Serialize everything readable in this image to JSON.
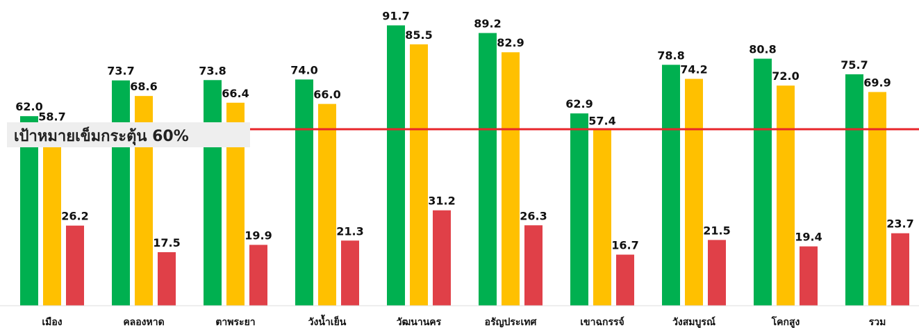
{
  "chart_data": {
    "type": "bar",
    "categories": [
      "เมือง",
      "คลองหาด",
      "ตาพระยา",
      "วังน้ำเย็น",
      "วัฒนานคร",
      "อรัญประเทศ",
      "เขาฉกรรจ์",
      "วังสมบูรณ์",
      "โคกสูง",
      "รวม"
    ],
    "series": [
      {
        "values": [
          62.0,
          73.7,
          73.8,
          74.0,
          91.7,
          89.2,
          62.9,
          78.8,
          80.8,
          75.7
        ],
        "color": "#00b050"
      },
      {
        "values": [
          58.7,
          68.6,
          66.4,
          66.0,
          85.5,
          82.9,
          57.4,
          74.2,
          72.0,
          69.9
        ],
        "color": "#ffc000"
      },
      {
        "values": [
          26.2,
          17.5,
          19.9,
          21.3,
          31.2,
          26.3,
          16.7,
          21.5,
          19.4,
          23.7
        ],
        "color": "#e04048"
      }
    ],
    "value_labels": [
      [
        "62.0",
        "73.7",
        "73.8",
        "74.0",
        "91.7",
        "89.2",
        "62.9",
        "78.8",
        "80.8",
        "75.7"
      ],
      [
        "58.7",
        "68.6",
        "66.4",
        "66.0",
        "85.5",
        "82.9",
        "57.4",
        "74.2",
        "72.0",
        "69.9"
      ],
      [
        "26.2",
        "17.5",
        "19.9",
        "21.3",
        "31.2",
        "26.3",
        "16.7",
        "21.5",
        "19.4",
        "23.7"
      ]
    ],
    "target_line": {
      "value": 60,
      "label": "เป้าหมายเข็มกระตุ้น 60%",
      "color": "#e8262b"
    },
    "ylim": [
      0,
      100
    ],
    "grid": false,
    "title": "",
    "xlabel": "",
    "ylabel": ""
  }
}
